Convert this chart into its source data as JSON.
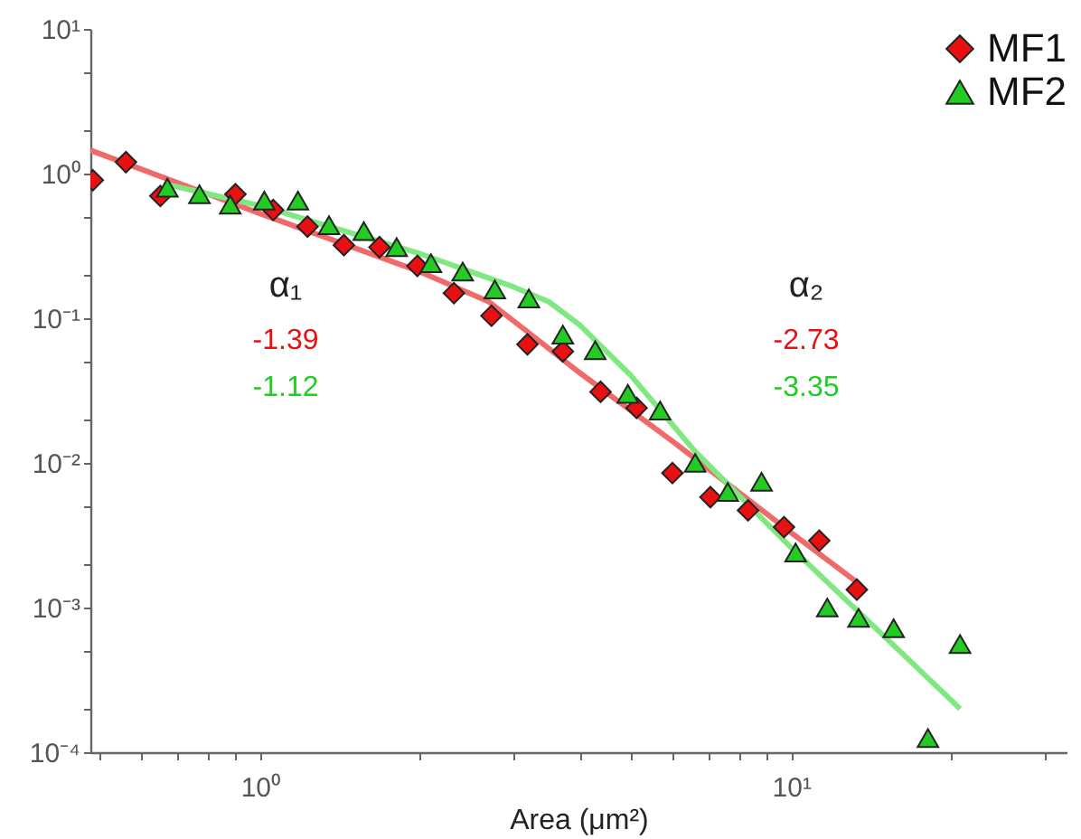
{
  "chart_data": {
    "type": "scatter",
    "xlabel": "Area (μm²)",
    "log": "xy",
    "legend": "top right",
    "grid": false,
    "xlim": [
      0.48,
      33
    ],
    "ylim": [
      0.0001,
      10
    ],
    "xticks": [
      {
        "value": 0.5,
        "label": null
      },
      {
        "value": 0.6,
        "label": null
      },
      {
        "value": 0.7,
        "label": null
      },
      {
        "value": 0.8,
        "label": null
      },
      {
        "value": 0.9,
        "label": null
      },
      {
        "value": 1,
        "label": "10⁰"
      },
      {
        "value": 2,
        "label": null
      },
      {
        "value": 3,
        "label": null
      },
      {
        "value": 4,
        "label": null
      },
      {
        "value": 5,
        "label": null
      },
      {
        "value": 6,
        "label": null
      },
      {
        "value": 7,
        "label": null
      },
      {
        "value": 8,
        "label": null
      },
      {
        "value": 9,
        "label": null
      },
      {
        "value": 10,
        "label": "10¹"
      },
      {
        "value": 20,
        "label": null
      },
      {
        "value": 30,
        "label": null
      }
    ],
    "yticks": [
      {
        "value": 0.0001,
        "label": "10⁻⁴"
      },
      {
        "value": 0.0002,
        "label": null
      },
      {
        "value": 0.0005,
        "label": null
      },
      {
        "value": 0.001,
        "label": "10⁻³"
      },
      {
        "value": 0.002,
        "label": null
      },
      {
        "value": 0.005,
        "label": null
      },
      {
        "value": 0.01,
        "label": "10⁻²"
      },
      {
        "value": 0.02,
        "label": null
      },
      {
        "value": 0.05,
        "label": null
      },
      {
        "value": 0.1,
        "label": "10⁻¹"
      },
      {
        "value": 0.2,
        "label": null
      },
      {
        "value": 0.5,
        "label": null
      },
      {
        "value": 1,
        "label": "10⁰"
      },
      {
        "value": 2,
        "label": null
      },
      {
        "value": 5,
        "label": null
      },
      {
        "value": 10,
        "label": "10¹"
      }
    ],
    "annotations": [
      "α₁",
      "-1.39",
      "-1.12",
      "α₂",
      "-2.73",
      "-3.35"
    ],
    "series": [
      {
        "name": "MF1",
        "marker": "diamond",
        "color": "#e81010",
        "x": [
          0.485,
          0.56,
          0.65,
          0.9,
          1.06,
          1.23,
          1.44,
          1.68,
          1.98,
          2.32,
          2.73,
          3.19,
          3.72,
          4.38,
          5.12,
          5.98,
          7.05,
          8.3,
          9.7,
          11.3,
          13.3
        ],
        "values": [
          0.9,
          1.2,
          0.7,
          0.72,
          0.56,
          0.43,
          0.32,
          0.31,
          0.23,
          0.149,
          0.104,
          0.066,
          0.059,
          0.031,
          0.024,
          0.0085,
          0.0058,
          0.0047,
          0.0036,
          0.0029,
          0.00133
        ]
      },
      {
        "name": "MF2",
        "marker": "triangle",
        "color": "#22cc22",
        "x": [
          0.67,
          0.77,
          0.88,
          1.02,
          1.18,
          1.35,
          1.57,
          1.81,
          2.1,
          2.41,
          2.77,
          3.21,
          3.72,
          4.28,
          4.93,
          5.67,
          6.6,
          7.6,
          8.8,
          10.2,
          11.7,
          13.4,
          15.6,
          18.1,
          20.8
        ],
        "values": [
          0.8,
          0.72,
          0.61,
          0.65,
          0.65,
          0.44,
          0.4,
          0.31,
          0.24,
          0.21,
          0.158,
          0.137,
          0.077,
          0.06,
          0.03,
          0.023,
          0.01,
          0.0063,
          0.0074,
          0.0024,
          0.001,
          0.00085,
          0.00072,
          0.000125,
          0.00056
        ]
      },
      {
        "type": "line",
        "color": "#f06a6a",
        "x": [
          0.48,
          1,
          2,
          2.7,
          3.2,
          4,
          6,
          10,
          13.3
        ],
        "values": [
          1.45,
          0.53,
          0.21,
          0.13,
          0.08,
          0.042,
          0.014,
          0.0033,
          0.0015
        ]
      },
      {
        "type": "line",
        "color": "#80e880",
        "x": [
          0.66,
          1,
          2,
          3,
          3.5,
          4,
          5,
          6.6,
          10,
          20.8
        ],
        "values": [
          0.85,
          0.6,
          0.28,
          0.165,
          0.13,
          0.09,
          0.04,
          0.012,
          0.0026,
          0.0002
        ]
      }
    ]
  }
}
